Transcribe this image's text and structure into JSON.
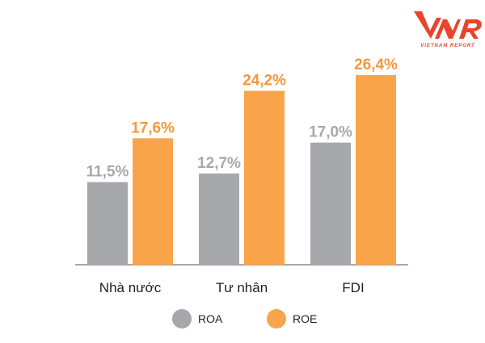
{
  "logo": {
    "text": "VNR",
    "subtext": "VIETNAM REPORT",
    "color": "#e8452c"
  },
  "chart_data": {
    "type": "bar",
    "categories": [
      "Nhà nước",
      "Tư nhân",
      "FDI"
    ],
    "series": [
      {
        "name": "ROA",
        "values": [
          11.5,
          12.7,
          17.0
        ],
        "labels": [
          "11,5%",
          "12,7%",
          "17,0%"
        ],
        "color": "#a7a8ab",
        "label_color": "#a7a8ab"
      },
      {
        "name": "ROE",
        "values": [
          17.6,
          24.2,
          26.4
        ],
        "labels": [
          "17,6%",
          "24,2%",
          "26,4%"
        ],
        "color": "#f9a44a",
        "label_color": "#f7973a"
      }
    ],
    "ylim": [
      0,
      26.4
    ],
    "grid": false,
    "legend": "bottom"
  }
}
